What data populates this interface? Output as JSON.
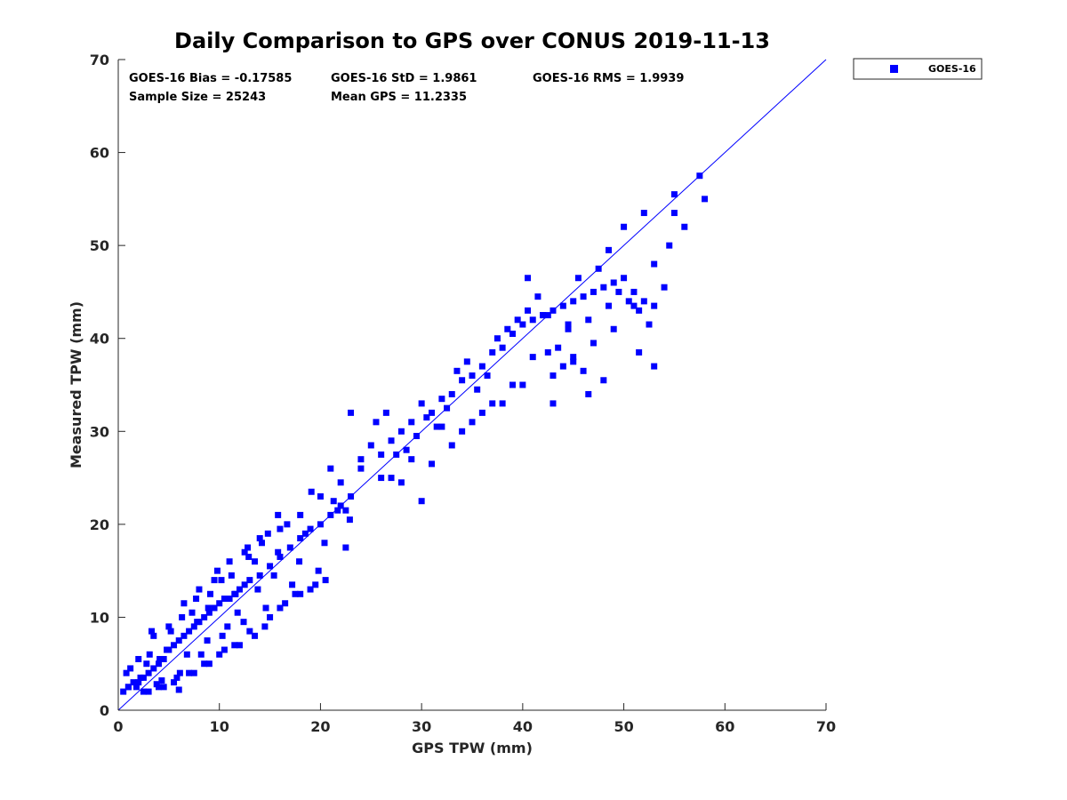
{
  "chart_data": {
    "type": "scatter",
    "title": "Daily Comparison to GPS over CONUS 2019-11-13",
    "xlabel": "GPS TPW (mm)",
    "ylabel": "Measured TPW (mm)",
    "xlim": [
      0,
      70
    ],
    "ylim": [
      0,
      70
    ],
    "xticks": [
      "0",
      "10",
      "20",
      "30",
      "40",
      "50",
      "60",
      "70"
    ],
    "yticks": [
      "0",
      "10",
      "20",
      "30",
      "40",
      "50",
      "60",
      "70"
    ],
    "grid": false,
    "legend_position": "outside-top-right",
    "reference_line": {
      "name": "1:1 line",
      "x": [
        0,
        70
      ],
      "y": [
        0,
        70
      ],
      "color": "#0000ff"
    },
    "annotations": {
      "bias": "GOES-16 Bias = -0.17585",
      "std": "GOES-16 StD = 1.9861",
      "rms": "GOES-16 RMS = 1.9939",
      "sample_size": "Sample Size = 25243",
      "mean_gps": "Mean GPS = 11.2335"
    },
    "series": [
      {
        "name": "GOES-16",
        "marker": "square",
        "color": "#0000ff",
        "x": [
          0.5,
          1.0,
          1.5,
          2.0,
          2.5,
          3.0,
          3.5,
          4.0,
          4.5,
          5.0,
          5.5,
          6.0,
          6.5,
          7.0,
          7.5,
          8.0,
          8.5,
          9.0,
          9.5,
          10.0,
          10.5,
          11.0,
          11.5,
          12.0,
          12.5,
          13.0,
          14.0,
          15.0,
          16.0,
          17.0,
          18.0,
          19.0,
          20.0,
          21.0,
          22.0,
          23.0,
          1.2,
          2.2,
          3.1,
          4.3,
          5.2,
          6.1,
          7.3,
          8.2,
          9.1,
          10.3,
          11.2,
          12.4,
          13.5,
          14.6,
          15.8,
          17.2,
          18.5,
          19.8,
          21.3,
          22.5,
          2.0,
          3.5,
          5.0,
          6.5,
          8.0,
          9.5,
          11.0,
          12.5,
          14.0,
          16.0,
          18.0,
          20.0,
          22.0,
          24.0,
          25.0,
          26.0,
          27.0,
          28.0,
          29.0,
          30.0,
          31.0,
          32.0,
          33.0,
          34.0,
          35.0,
          36.0,
          37.0,
          38.0,
          39.0,
          40.0,
          41.0,
          42.0,
          43.0,
          44.0,
          45.0,
          46.0,
          47.0,
          48.0,
          49.0,
          50.0,
          51.0,
          52.0,
          53.0,
          54.0,
          25.5,
          26.5,
          27.5,
          28.5,
          29.5,
          30.5,
          31.5,
          32.5,
          33.5,
          34.5,
          35.5,
          36.5,
          37.5,
          38.5,
          39.5,
          40.5,
          41.5,
          42.5,
          43.5,
          44.5,
          45.5,
          46.5,
          47.5,
          48.5,
          49.5,
          50.5,
          51.5,
          52.5,
          27.0,
          29.0,
          31.0,
          33.0,
          35.0,
          37.0,
          39.0,
          41.0,
          43.0,
          45.0,
          47.0,
          49.0,
          51.0,
          53.0,
          55.0,
          57.5,
          58.0,
          56.0,
          54.5,
          23.0,
          24.0,
          26.0,
          28.0,
          30.0,
          32.0,
          34.0,
          36.0,
          38.0,
          40.5,
          42.0,
          44.0,
          46.0,
          48.0,
          50.0,
          52.0,
          55.0,
          21.0,
          22.5,
          1.0,
          2.5,
          4.0,
          5.5,
          7.0,
          8.5,
          10.0,
          11.5,
          13.0,
          14.5,
          16.0,
          17.5,
          19.0,
          20.5,
          3.0,
          4.5,
          6.0,
          7.5,
          9.0,
          10.5,
          12.0,
          13.5,
          15.0,
          16.5,
          18.0,
          19.5,
          40.0,
          43.0,
          45.0,
          46.5,
          42.5,
          44.5,
          53.0,
          51.5,
          48.5,
          0.8,
          1.8,
          2.8,
          3.8,
          4.8,
          5.8,
          6.8,
          7.8,
          8.8,
          9.8,
          10.8,
          11.8,
          12.8,
          13.8,
          14.8,
          15.8,
          3.3,
          4.1,
          6.3,
          7.7,
          8.9,
          10.2,
          11.6,
          12.9,
          14.2,
          15.4,
          16.7,
          17.9,
          19.1,
          20.4,
          21.7,
          22.9
        ],
        "y": [
          2.0,
          2.5,
          3.0,
          3.0,
          3.5,
          4.0,
          4.5,
          5.0,
          5.5,
          6.5,
          7.0,
          7.5,
          8.0,
          8.5,
          9.0,
          9.5,
          10.0,
          10.5,
          11.0,
          11.5,
          12.0,
          12.0,
          12.5,
          13.0,
          13.5,
          14.0,
          14.5,
          15.5,
          16.5,
          17.5,
          18.5,
          19.5,
          20.0,
          21.0,
          22.0,
          23.0,
          4.5,
          3.5,
          6.0,
          3.2,
          8.5,
          4.0,
          10.5,
          6.0,
          12.5,
          8.0,
          14.5,
          9.5,
          16.0,
          11.0,
          17.0,
          13.5,
          19.0,
          15.0,
          22.5,
          17.5,
          5.5,
          8.0,
          9.0,
          11.5,
          13.0,
          14.0,
          16.0,
          17.0,
          18.5,
          19.5,
          21.0,
          23.0,
          24.5,
          27.0,
          28.5,
          27.5,
          29.0,
          30.0,
          31.0,
          33.0,
          32.0,
          33.5,
          34.0,
          35.5,
          36.0,
          37.0,
          38.5,
          39.0,
          40.5,
          41.5,
          42.0,
          42.5,
          43.0,
          43.5,
          44.0,
          44.5,
          45.0,
          45.5,
          46.0,
          46.5,
          45.0,
          44.0,
          43.5,
          45.5,
          31.0,
          32.0,
          27.5,
          28.0,
          29.5,
          31.5,
          30.5,
          32.5,
          36.5,
          37.5,
          34.5,
          36.0,
          40.0,
          41.0,
          42.0,
          43.0,
          44.5,
          38.5,
          39.0,
          41.5,
          46.5,
          42.0,
          47.5,
          43.5,
          45.0,
          44.0,
          43.0,
          41.5,
          25.0,
          27.0,
          26.5,
          28.5,
          31.0,
          33.0,
          35.0,
          38.0,
          36.0,
          38.0,
          39.5,
          41.0,
          43.5,
          48.0,
          55.5,
          57.5,
          55.0,
          52.0,
          50.0,
          32.0,
          26.0,
          25.0,
          24.5,
          22.5,
          30.5,
          30.0,
          32.0,
          33.0,
          46.5,
          42.5,
          37.0,
          36.5,
          35.5,
          52.0,
          53.5,
          53.5,
          26.0,
          21.5,
          2.5,
          2.0,
          2.5,
          3.0,
          4.0,
          5.0,
          6.0,
          7.0,
          8.5,
          9.0,
          11.0,
          12.5,
          13.0,
          14.0,
          2.0,
          2.5,
          2.2,
          4.0,
          5.0,
          6.5,
          7.0,
          8.0,
          10.0,
          11.5,
          12.5,
          13.5,
          35.0,
          33.0,
          37.5,
          34.0,
          42.5,
          41.0,
          37.0,
          38.5,
          49.5,
          4.0,
          2.5,
          5.0,
          2.8,
          6.5,
          3.5,
          6.0,
          9.5,
          7.5,
          15.0,
          9.0,
          10.5,
          17.5,
          13.0,
          19.0,
          21.0,
          8.5,
          5.5,
          10.0,
          12.0,
          11.0,
          14.0,
          12.5,
          16.5,
          18.0,
          14.5,
          20.0,
          16.0,
          23.5,
          18.0,
          21.5,
          20.5
        ]
      }
    ]
  },
  "legend": {
    "label": "GOES-16"
  }
}
